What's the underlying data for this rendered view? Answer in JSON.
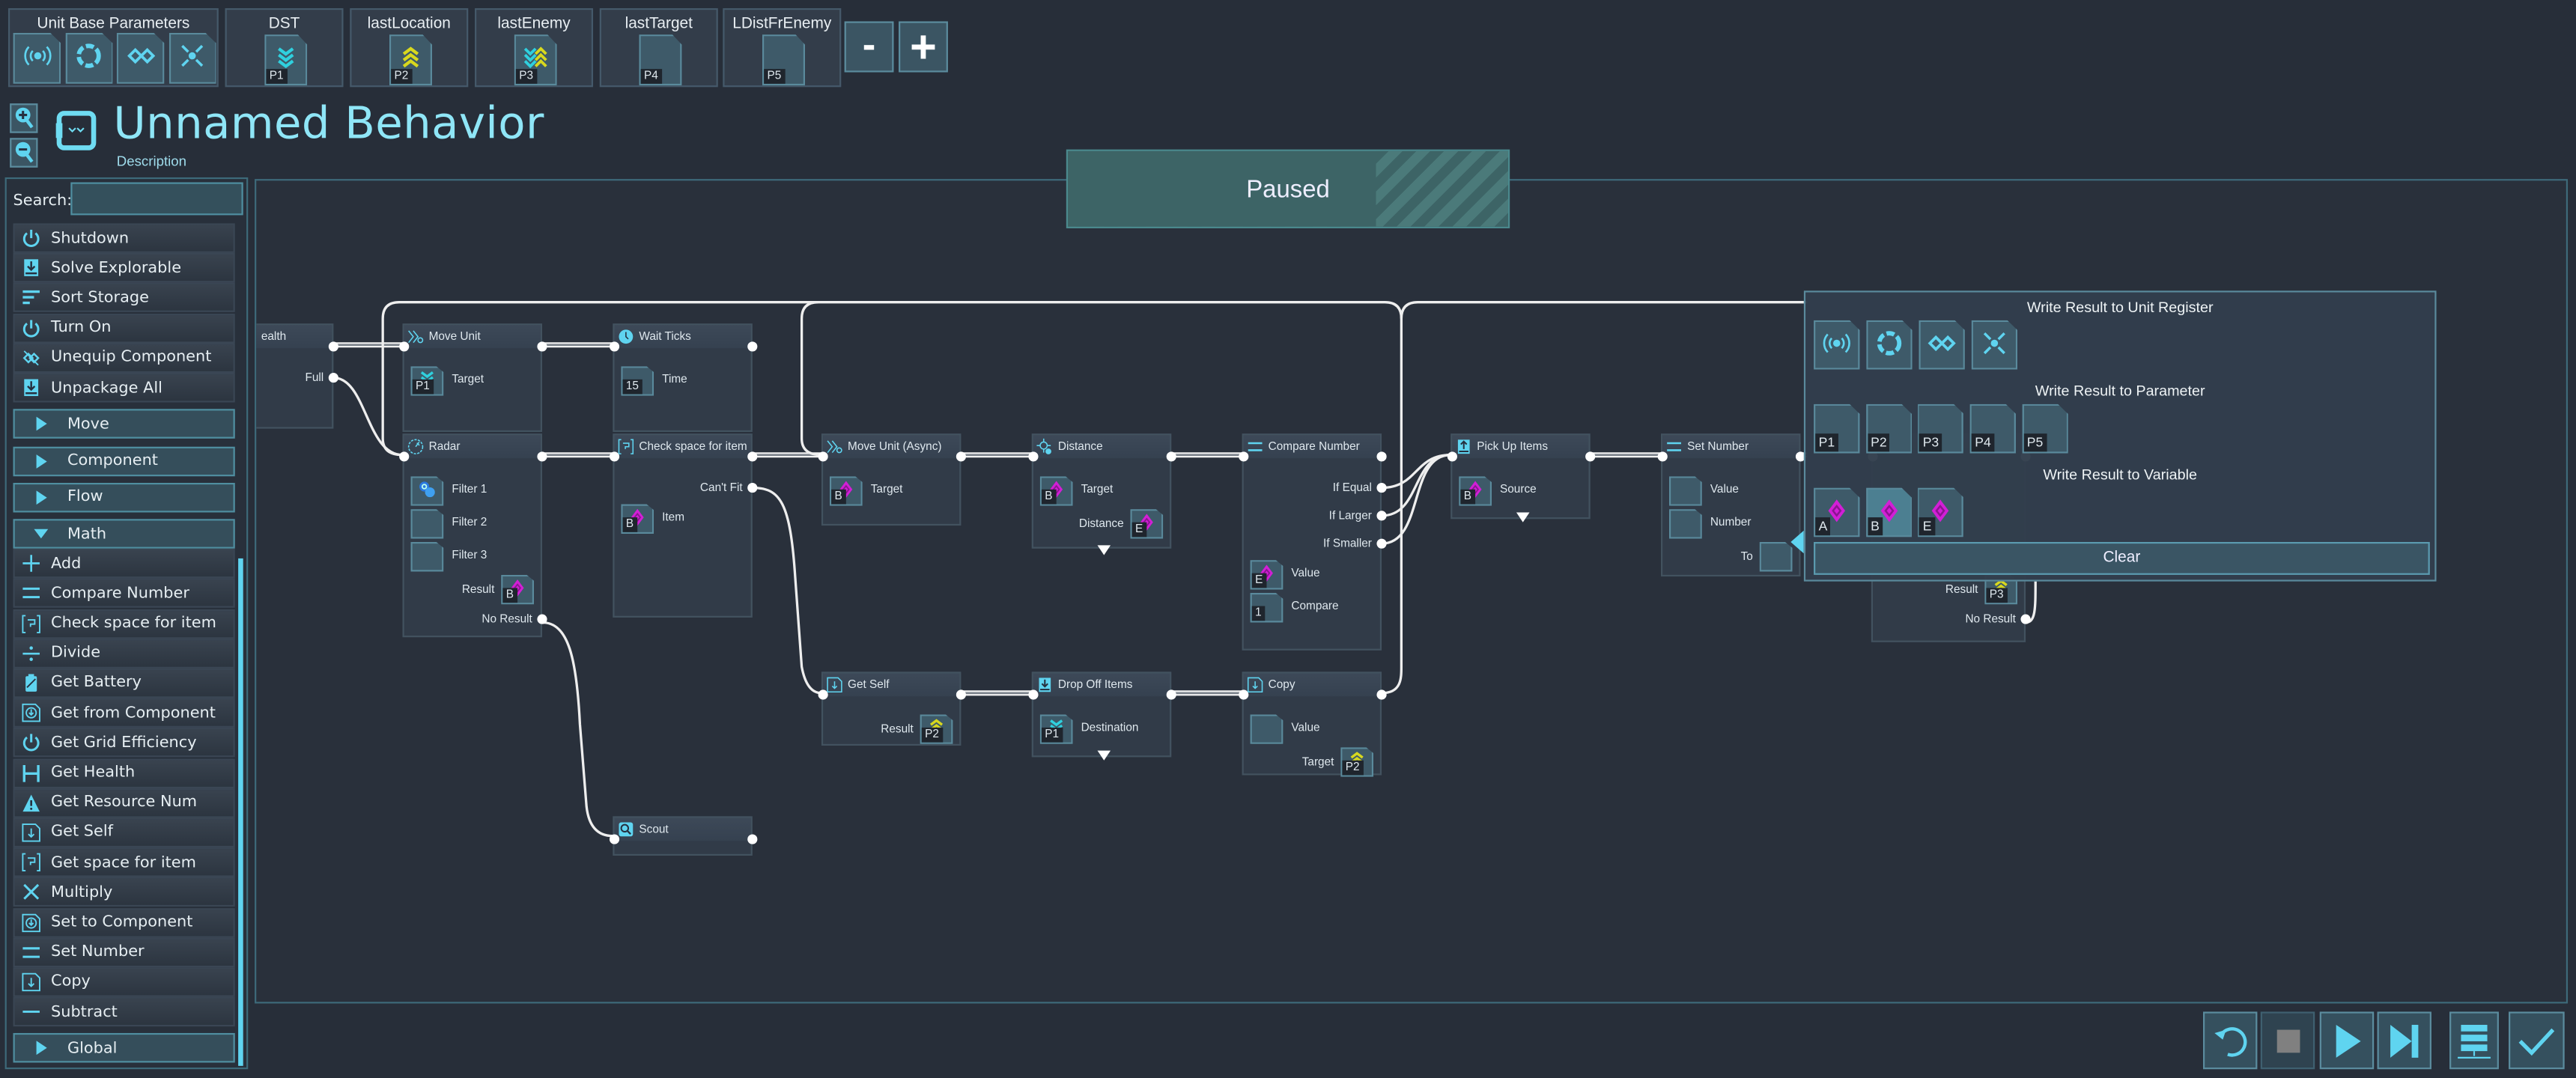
{
  "colors": {
    "accent": "#5fd4f0",
    "background": "#272e39",
    "variable": "#d21fd6",
    "param_up": "#d8d81e",
    "param_down": "#2fd0de"
  },
  "top_bar": {
    "unit_base": {
      "label": "Unit Base Parameters",
      "icons": [
        "signal-icon",
        "aperture-icon",
        "link-icon",
        "converge-icon"
      ]
    },
    "parameters": [
      {
        "name": "DST",
        "badge": "P1",
        "icon": "chevrons-down"
      },
      {
        "name": "lastLocation",
        "badge": "P2",
        "icon": "chevrons-up"
      },
      {
        "name": "lastEnemy",
        "badge": "P3",
        "icon": "chevrons-both"
      },
      {
        "name": "lastTarget",
        "badge": "P4",
        "icon": ""
      },
      {
        "name": "LDistFrEnemy",
        "badge": "P5",
        "icon": ""
      }
    ],
    "remove_label": "-",
    "add_label": "+"
  },
  "header": {
    "title": "Unnamed Behavior",
    "description": "Description"
  },
  "sidebar": {
    "search_label": "Search:",
    "search_value": "",
    "items": [
      {
        "label": "Shutdown",
        "icon": "power",
        "kind": "item"
      },
      {
        "label": "Solve Explorable",
        "icon": "download",
        "kind": "item"
      },
      {
        "label": "Sort Storage",
        "icon": "sort",
        "kind": "item"
      },
      {
        "label": "Turn On",
        "icon": "power",
        "kind": "item"
      },
      {
        "label": "Unequip Component",
        "icon": "unlink",
        "kind": "item"
      },
      {
        "label": "Unpackage All",
        "icon": "download",
        "kind": "item"
      },
      {
        "label": "Move",
        "icon": "expand",
        "kind": "category",
        "expanded": false
      },
      {
        "label": "Component",
        "icon": "expand",
        "kind": "category",
        "expanded": false
      },
      {
        "label": "Flow",
        "icon": "expand",
        "kind": "category",
        "expanded": false
      },
      {
        "label": "Math",
        "icon": "collapse",
        "kind": "category",
        "expanded": true
      },
      {
        "label": "Add",
        "icon": "plus",
        "kind": "item"
      },
      {
        "label": "Compare Number",
        "icon": "equals",
        "kind": "item"
      },
      {
        "label": "Check space for item",
        "icon": "bracket",
        "kind": "item"
      },
      {
        "label": "Divide",
        "icon": "divide",
        "kind": "item"
      },
      {
        "label": "Get Battery",
        "icon": "battery",
        "kind": "item"
      },
      {
        "label": "Get from Component",
        "icon": "download-box",
        "kind": "item"
      },
      {
        "label": "Get Grid Efficiency",
        "icon": "power",
        "kind": "item"
      },
      {
        "label": "Get Health",
        "icon": "health",
        "kind": "item"
      },
      {
        "label": "Get Resource Num",
        "icon": "warning",
        "kind": "item"
      },
      {
        "label": "Get Self",
        "icon": "doc-arrow",
        "kind": "item"
      },
      {
        "label": "Get space for item",
        "icon": "bracket",
        "kind": "item"
      },
      {
        "label": "Multiply",
        "icon": "cross",
        "kind": "item"
      },
      {
        "label": "Set to Component",
        "icon": "download-box",
        "kind": "item"
      },
      {
        "label": "Set Number",
        "icon": "equals",
        "kind": "item"
      },
      {
        "label": "Copy",
        "icon": "doc-arrow",
        "kind": "item"
      },
      {
        "label": "Subtract",
        "icon": "minus",
        "kind": "item"
      },
      {
        "label": "Global",
        "icon": "expand",
        "kind": "category",
        "expanded": false
      }
    ]
  },
  "status": "Paused",
  "nodes": [
    {
      "title": "ealth",
      "icon": "",
      "rows": [
        {
          "type": "output",
          "label": "Full"
        }
      ],
      "dropdown": true
    },
    {
      "title": "Move Unit",
      "icon": "move",
      "rows": [
        {
          "type": "slot",
          "side": "left",
          "label": "Target",
          "badge": "P1",
          "icon": "chevrons-down"
        }
      ]
    },
    {
      "title": "Wait Ticks",
      "icon": "clock",
      "rows": [
        {
          "type": "slot",
          "side": "left",
          "label": "Time",
          "badge": "15",
          "icon": ""
        }
      ]
    },
    {
      "title": "Radar",
      "icon": "radar",
      "rows": [
        {
          "type": "slot",
          "side": "left",
          "label": "Filter 1",
          "badge": "",
          "icon": "filter"
        },
        {
          "type": "slot",
          "side": "left",
          "label": "Filter 2",
          "badge": "",
          "icon": ""
        },
        {
          "type": "slot",
          "side": "left",
          "label": "Filter 3",
          "badge": "",
          "icon": ""
        },
        {
          "type": "slot",
          "side": "right",
          "label": "Result",
          "badge": "B",
          "icon": "diamond"
        },
        {
          "type": "output",
          "label": "No Result"
        }
      ]
    },
    {
      "title": "Check space for item",
      "icon": "bracket",
      "rows": [
        {
          "type": "output",
          "label": "Can't Fit"
        },
        {
          "type": "slot",
          "side": "left",
          "label": "Item",
          "badge": "B",
          "icon": "diamond"
        }
      ]
    },
    {
      "title": "Move Unit (Async)",
      "icon": "move",
      "rows": [
        {
          "type": "slot",
          "side": "left",
          "label": "Target",
          "badge": "B",
          "icon": "diamond"
        }
      ]
    },
    {
      "title": "Distance",
      "icon": "distance",
      "rows": [
        {
          "type": "slot",
          "side": "left",
          "label": "Target",
          "badge": "B",
          "icon": "diamond"
        },
        {
          "type": "slot",
          "side": "right",
          "label": "Distance",
          "badge": "E",
          "icon": "diamond"
        }
      ],
      "dropdown": true
    },
    {
      "title": "Compare Number",
      "icon": "equals",
      "rows": [
        {
          "type": "output",
          "label": "If Equal"
        },
        {
          "type": "output",
          "label": "If Larger"
        },
        {
          "type": "output",
          "label": "If Smaller"
        },
        {
          "type": "slot",
          "side": "left",
          "label": "Value",
          "badge": "E",
          "icon": "diamond"
        },
        {
          "type": "slot",
          "side": "left",
          "label": "Compare",
          "badge": "1",
          "icon": ""
        }
      ]
    },
    {
      "title": "Pick Up Items",
      "icon": "upload",
      "rows": [
        {
          "type": "slot",
          "side": "left",
          "label": "Source",
          "badge": "B",
          "icon": "diamond"
        }
      ],
      "dropdown": true
    },
    {
      "title": "Set Number",
      "icon": "equals",
      "rows": [
        {
          "type": "slot",
          "side": "left",
          "label": "Value",
          "badge": "",
          "icon": ""
        },
        {
          "type": "slot",
          "side": "left",
          "label": "Number",
          "badge": "",
          "icon": ""
        },
        {
          "type": "slot",
          "side": "right",
          "label": "To",
          "badge": "",
          "icon": ""
        }
      ]
    },
    {
      "title": "",
      "icon": "",
      "rows": [
        {
          "type": "spacer"
        },
        {
          "type": "spacer"
        },
        {
          "type": "spacer"
        },
        {
          "type": "slot",
          "side": "right",
          "label": "Result",
          "badge": "P3",
          "icon": "chevrons-up"
        },
        {
          "type": "output",
          "label": "No Result"
        }
      ]
    },
    {
      "title": "Get Self",
      "icon": "doc-arrow",
      "rows": [
        {
          "type": "slot",
          "side": "right",
          "label": "Result",
          "badge": "P2",
          "icon": "chevrons-up"
        }
      ]
    },
    {
      "title": "Drop Off Items",
      "icon": "download",
      "rows": [
        {
          "type": "slot",
          "side": "left",
          "label": "Destination",
          "badge": "P1",
          "icon": "chevrons-down"
        }
      ],
      "dropdown": true
    },
    {
      "title": "Copy",
      "icon": "doc-arrow",
      "rows": [
        {
          "type": "slot",
          "side": "left",
          "label": "Value",
          "badge": "",
          "icon": ""
        },
        {
          "type": "slot",
          "side": "right",
          "label": "Target",
          "badge": "P2",
          "icon": "chevrons-up"
        }
      ]
    },
    {
      "title": "Scout",
      "icon": "scout",
      "rows": []
    }
  ],
  "popup": {
    "register_title": "Write Result to Unit Register",
    "register_icons": [
      "signal-icon",
      "aperture-icon",
      "link-icon",
      "converge-icon"
    ],
    "parameter_title": "Write Result to Parameter",
    "parameters": [
      "P1",
      "P2",
      "P3",
      "P4",
      "P5"
    ],
    "variable_title": "Write Result to Variable",
    "variables": [
      "A",
      "B",
      "E"
    ],
    "selected_variable": "B",
    "clear_label": "Clear"
  },
  "controls": [
    {
      "name": "restart-button",
      "icon": "restart"
    },
    {
      "name": "stop-button",
      "icon": "stop",
      "enabled": false
    },
    {
      "name": "play-button",
      "icon": "play"
    },
    {
      "name": "step-button",
      "icon": "step"
    },
    {
      "name": "library-button",
      "icon": "server"
    },
    {
      "name": "confirm-button",
      "icon": "check"
    }
  ]
}
